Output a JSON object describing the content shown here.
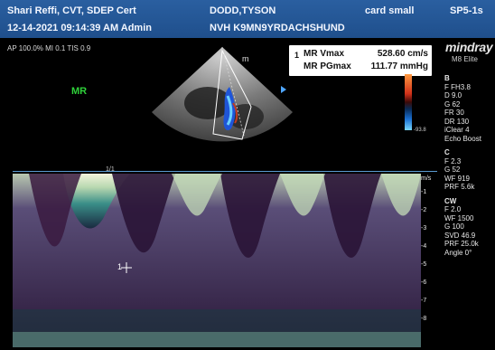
{
  "header": {
    "operator": "Shari Reffi, CVT, SDEP Cert",
    "patient": "DODD,TYSON",
    "preset": "card small",
    "probe": "SP5-1s",
    "datetime": "12-14-2021 09:14:39 AM Admin",
    "patient_id": "NVH K9MN9YRDACHSHUND"
  },
  "image_params": "AP 100.0%  MI 0.1  TIS 0.9",
  "mode_label": "MR",
  "measurements": {
    "index": "1",
    "rows": [
      {
        "label": "MR Vmax",
        "value": "528.60 cm/s"
      },
      {
        "label": "MR PGmax",
        "value": "111.77 mmHg"
      }
    ]
  },
  "brand": {
    "logo": "mindray",
    "model": "M8 Elite"
  },
  "colorbar_value": "-93.8",
  "side_panel": {
    "b_mode": {
      "title": "B",
      "items": [
        "F FH3.8",
        "D 9.0",
        "G 62",
        "FR 30",
        "DR 130",
        "iClear 4",
        "Echo Boost"
      ]
    },
    "color": {
      "title": "C",
      "items": [
        "F 2.3",
        "G 52",
        "WF 919",
        "PRF 5.6k"
      ]
    },
    "cw": {
      "title": "CW",
      "items": [
        "F 2.0",
        "WF 1500",
        "G 100",
        "SVD 46.9",
        "PRF 25.0k",
        "Angle 0°"
      ]
    }
  },
  "doppler": {
    "scale_marker": "1/1",
    "cursor_label": "1",
    "axis_unit": "m/s",
    "axis_ticks": [
      "-1",
      "-2",
      "-3",
      "-4",
      "-5",
      "-6",
      "-7",
      "-8"
    ]
  },
  "colors": {
    "header": "#2a5fa0",
    "mode_label": "#2fd23a",
    "spectrum": "#b8d8b0",
    "background": "#000000"
  }
}
